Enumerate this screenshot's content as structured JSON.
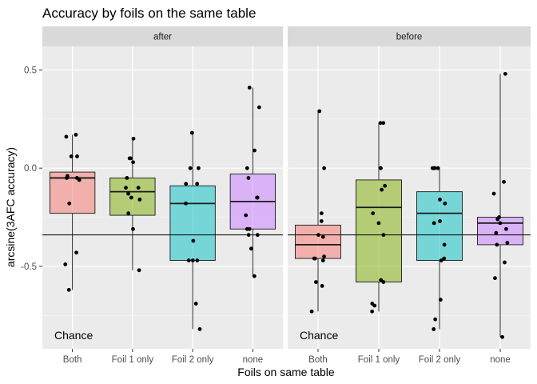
{
  "chart_data": {
    "type": "box",
    "title": "Accuracy by foils on the same table",
    "xlabel": "Foils on same table",
    "ylabel": "arcsine(3AFC accuracy)",
    "ylim": [
      -0.92,
      0.62
    ],
    "yticks": [
      0.5,
      0.0,
      -0.5
    ],
    "ytick_labels": [
      "0.5",
      "0.0",
      "-0.5"
    ],
    "grid": true,
    "reference_line": {
      "y": -0.34,
      "label": "Chance"
    },
    "categories": [
      "Both",
      "Foil 1 only",
      "Foil 2 only",
      "none"
    ],
    "colors": {
      "Both": "#f8766d",
      "Foil 1 only": "#7cae00",
      "Foil 2 only": "#00bfc4",
      "none": "#c77cff"
    },
    "panels": [
      {
        "name": "after",
        "boxes": [
          {
            "category": "Both",
            "q1": -0.23,
            "median": -0.05,
            "q3": -0.02,
            "lo": -0.62,
            "hi": 0.17,
            "points": [
              0.17,
              0.16,
              0.06,
              0.06,
              -0.04,
              -0.05,
              -0.05,
              -0.06,
              -0.18,
              -0.43,
              -0.49,
              -0.62
            ]
          },
          {
            "category": "Foil 1 only",
            "q1": -0.24,
            "median": -0.12,
            "q3": -0.05,
            "lo": -0.52,
            "hi": 0.15,
            "points": [
              0.15,
              0.05,
              0.05,
              0.03,
              -0.05,
              -0.1,
              -0.1,
              -0.13,
              -0.15,
              -0.16,
              -0.23,
              -0.31,
              -0.52
            ]
          },
          {
            "category": "Foil 2 only",
            "q1": -0.47,
            "median": -0.18,
            "q3": -0.09,
            "lo": -0.82,
            "hi": 0.18,
            "points": [
              0.18,
              0.0,
              0.0,
              -0.08,
              -0.08,
              -0.18,
              -0.37,
              -0.47,
              -0.47,
              -0.47,
              -0.69,
              -0.82
            ]
          },
          {
            "category": "none",
            "q1": -0.31,
            "median": -0.17,
            "q3": -0.03,
            "lo": -0.55,
            "hi": 0.41,
            "points": [
              0.41,
              0.31,
              0.09,
              0.0,
              -0.05,
              -0.15,
              -0.15,
              -0.24,
              -0.31,
              -0.31,
              -0.34,
              -0.34,
              -0.41,
              -0.55
            ]
          }
        ]
      },
      {
        "name": "before",
        "boxes": [
          {
            "category": "Both",
            "q1": -0.46,
            "median": -0.39,
            "q3": -0.29,
            "lo": -0.73,
            "hi": 0.29,
            "points": [
              0.29,
              0.0,
              -0.23,
              -0.27,
              -0.34,
              -0.35,
              -0.45,
              -0.46,
              -0.46,
              -0.47,
              -0.58,
              -0.6,
              -0.73
            ]
          },
          {
            "category": "Foil 1 only",
            "q1": -0.58,
            "median": -0.2,
            "q3": -0.06,
            "lo": -0.73,
            "hi": 0.23,
            "points": [
              0.23,
              0.23,
              0.0,
              0.0,
              -0.09,
              -0.11,
              -0.23,
              -0.28,
              -0.34,
              -0.57,
              -0.58,
              -0.69,
              -0.7,
              -0.73
            ]
          },
          {
            "category": "Foil 2 only",
            "q1": -0.47,
            "median": -0.23,
            "q3": -0.12,
            "lo": -0.82,
            "hi": 0.0,
            "points": [
              0.0,
              0.0,
              0.0,
              0.0,
              -0.16,
              -0.18,
              -0.27,
              -0.28,
              -0.39,
              -0.46,
              -0.47,
              -0.67,
              -0.77,
              -0.82
            ]
          },
          {
            "category": "none",
            "q1": -0.39,
            "median": -0.28,
            "q3": -0.25,
            "lo": -0.86,
            "hi": 0.48,
            "points": [
              0.48,
              -0.07,
              -0.13,
              -0.25,
              -0.26,
              -0.28,
              -0.31,
              -0.33,
              -0.38,
              -0.39,
              -0.48,
              -0.56,
              -0.86
            ]
          }
        ]
      }
    ]
  }
}
